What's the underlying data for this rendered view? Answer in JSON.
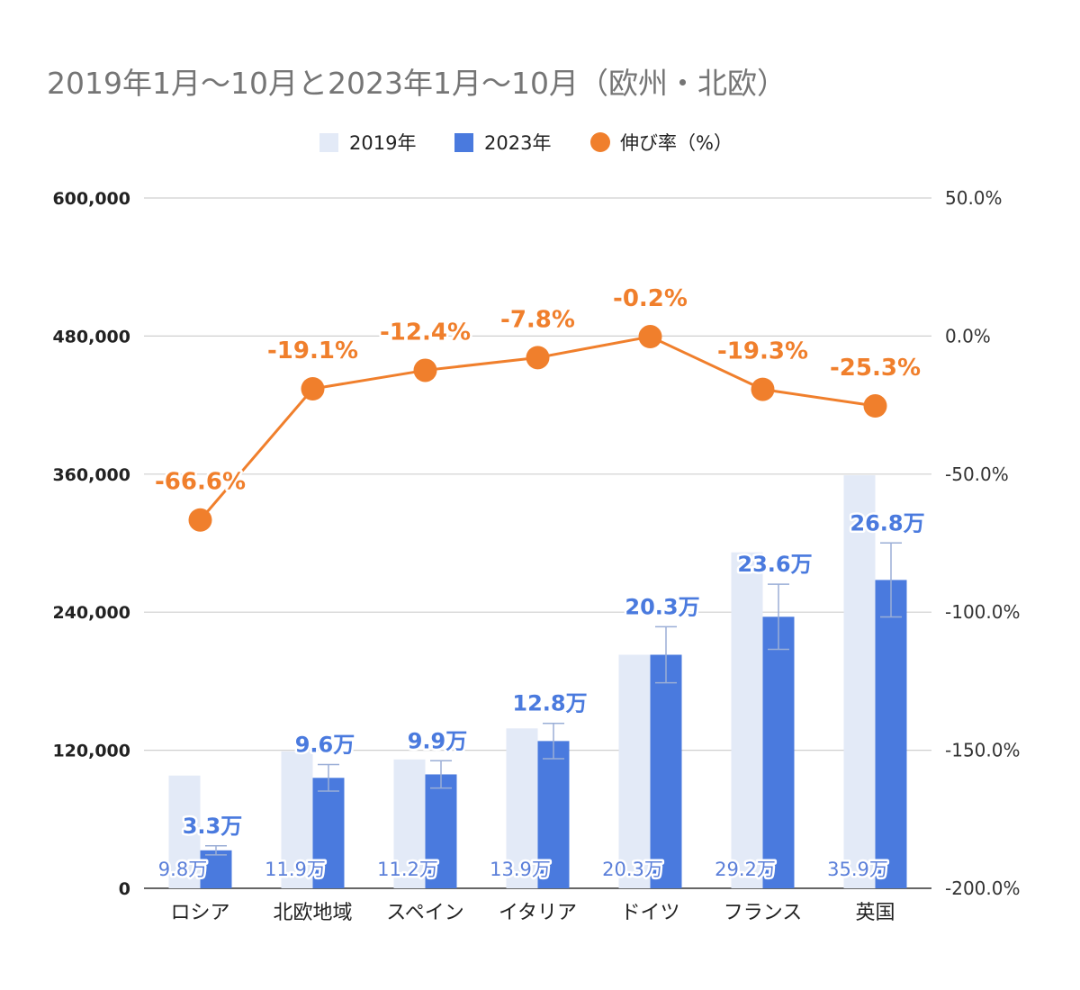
{
  "chart_data": {
    "type": "bar",
    "title": "2019年1月〜10月と2023年1月〜10月（欧州・北欧）",
    "categories": [
      "ロシア",
      "北欧地域",
      "スペイン",
      "イタリア",
      "ドイツ",
      "フランス",
      "英国"
    ],
    "series": [
      {
        "name": "2019年",
        "type": "bar",
        "axis": "left",
        "color": "#e3eaf7",
        "values": [
          98000,
          119000,
          112000,
          139000,
          203000,
          292000,
          359000
        ],
        "labels": [
          "9.8万",
          "11.9万",
          "11.2万",
          "13.9万",
          "20.3万",
          "29.2万",
          "35.9万"
        ]
      },
      {
        "name": "2023年",
        "type": "bar",
        "axis": "left",
        "color": "#4a7ade",
        "values": [
          33000,
          96000,
          99000,
          128000,
          203000,
          236000,
          268000
        ],
        "labels": [
          "3.3万",
          "9.6万",
          "9.9万",
          "12.8万",
          "20.3万",
          "23.6万",
          "26.8万"
        ],
        "error_bars": true
      },
      {
        "name": "伸び率（%）",
        "type": "line",
        "axis": "right",
        "color": "#f07f2c",
        "values": [
          -66.6,
          -19.1,
          -12.4,
          -7.8,
          -0.2,
          -19.3,
          -25.3
        ],
        "labels": [
          "-66.6%",
          "-19.1%",
          "-12.4%",
          "-7.8%",
          "-0.2%",
          "-19.3%",
          "-25.3%"
        ]
      }
    ],
    "y_left": {
      "range": [
        0,
        600000
      ],
      "ticks": [
        0,
        120000,
        240000,
        360000,
        480000,
        600000
      ],
      "tick_labels": [
        "0",
        "120,000",
        "240,000",
        "360,000",
        "480,000",
        "600,000"
      ]
    },
    "y_right": {
      "range": [
        -200,
        50
      ],
      "ticks": [
        -200,
        -150,
        -100,
        -50,
        0,
        50
      ],
      "tick_labels": [
        "-200.0%",
        "-150.0%",
        "-100.0%",
        "-50.0%",
        "0.0%",
        "50.0%"
      ]
    },
    "grid": true,
    "legend_position": "top"
  }
}
